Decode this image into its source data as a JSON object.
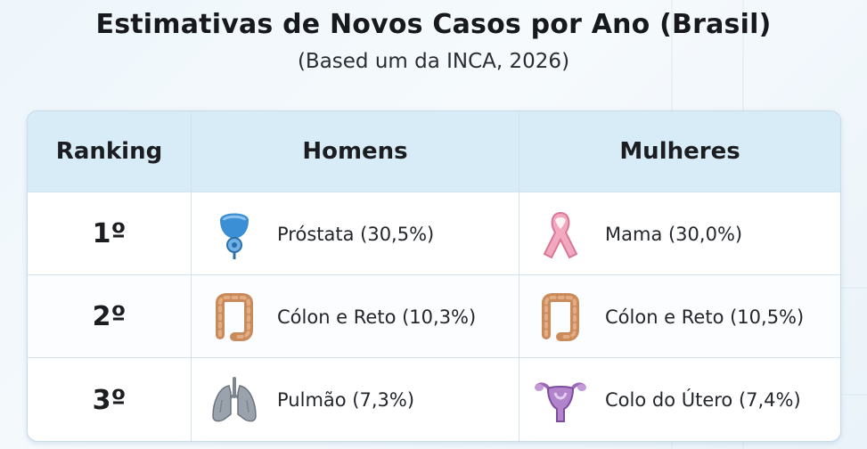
{
  "title": "Estimativas de Novos Casos por Ano (Brasil)",
  "subtitle": "(Based um da INCA, 2026)",
  "chart_data": {
    "type": "table",
    "columns": [
      "Ranking",
      "Homens",
      "Mulheres"
    ],
    "rows": [
      {
        "rank": "1º",
        "homens": {
          "label": "Próstata (30,5%)",
          "name": "Próstata",
          "percent": 30.5,
          "icon": "prostate-icon"
        },
        "mulheres": {
          "label": "Mama (30,0%)",
          "name": "Mama",
          "percent": 30.0,
          "icon": "pink-ribbon-icon"
        }
      },
      {
        "rank": "2º",
        "homens": {
          "label": "Cólon e Reto (10,3%)",
          "name": "Cólon e Reto",
          "percent": 10.3,
          "icon": "colon-icon"
        },
        "mulheres": {
          "label": "Cólon e Reto (10,5%)",
          "name": "Cólon e Reto",
          "percent": 10.5,
          "icon": "colon-icon"
        }
      },
      {
        "rank": "3º",
        "homens": {
          "label": "Pulmão (7,3%)",
          "name": "Pulmão",
          "percent": 7.3,
          "icon": "lungs-icon"
        },
        "mulheres": {
          "label": "Colo do Útero (7,4%)",
          "name": "Colo do Útero",
          "percent": 7.4,
          "icon": "uterus-icon"
        }
      }
    ]
  },
  "colors": {
    "header_bg": "#d7ecf7",
    "prostate": "#3b8fd4",
    "ribbon": "#f2a9c0",
    "colon": "#c98a5c",
    "lungs": "#9aa3ab",
    "uterus": "#9b6bb8"
  }
}
